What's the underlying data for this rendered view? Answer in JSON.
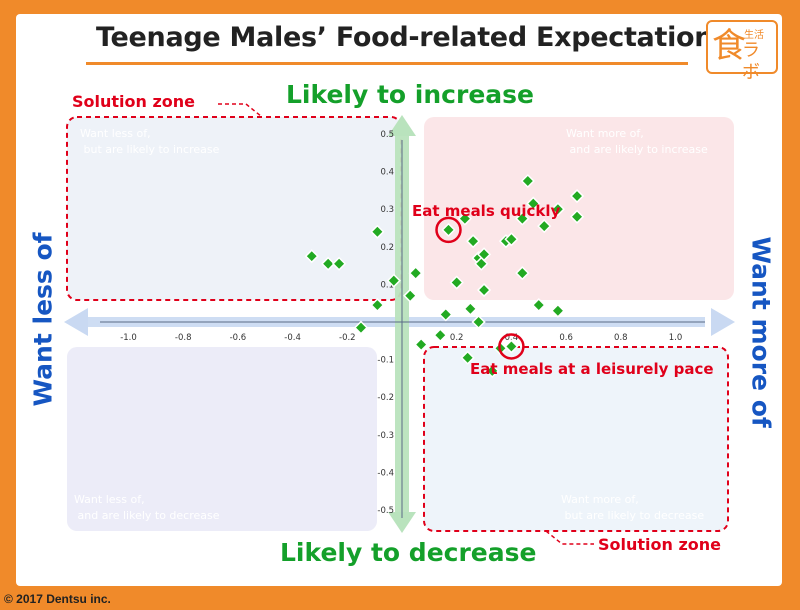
{
  "header": {
    "title": "Teenage Males’ Food-related Expectations",
    "logo_main": "食",
    "logo_top": "生活",
    "logo_side": "ラボ"
  },
  "footer": {
    "copyright": "© 2017 Dentsu inc."
  },
  "axes_words": {
    "top": "Likely to increase",
    "bottom": "Likely to decrease",
    "left": "Want less of",
    "right": "Want more of"
  },
  "zones": {
    "top_left": "Solution zone",
    "bottom_right": "Solution zone"
  },
  "quadrants": {
    "top_left": "Want less of,\n but are likely to increase",
    "top_right": "Want more of,\n and are likely to increase",
    "bottom_left": "Want less of,\n and are likely to decrease",
    "bottom_right": "Want more of,\n but are likely to decrease"
  },
  "annotations": {
    "quickly": "Eat meals quickly",
    "leisurely": "Eat meals at a leisurely pace"
  },
  "colors": {
    "marker": "#22aa22",
    "zone_dash": "#e0001a",
    "q_top_left": "#eef2f8",
    "q_top_right": "#fbe6e8",
    "q_bottom_left": "#ececf8",
    "q_bottom_right": "#eef4fa"
  },
  "chart_data": {
    "type": "scatter",
    "xlim": [
      -1.0,
      1.0
    ],
    "ylim": [
      -0.5,
      0.5
    ],
    "x_ticks": [
      "-1.0",
      "-0.8",
      "-0.6",
      "-0.4",
      "-0.2",
      "0.2",
      "0.4",
      "0.6",
      "0.8",
      "1.0"
    ],
    "x_tick_values": [
      -1.0,
      -0.8,
      -0.6,
      -0.4,
      -0.2,
      0.2,
      0.4,
      0.6,
      0.8,
      1.0
    ],
    "y_ticks": [
      "0.5",
      "0.4",
      "0.3",
      "0.2",
      "0.1",
      "-0.1",
      "-0.2",
      "-0.3",
      "-0.4",
      "-0.5"
    ],
    "y_tick_values": [
      0.5,
      0.4,
      0.3,
      0.2,
      0.1,
      -0.1,
      -0.2,
      -0.3,
      -0.4,
      -0.5
    ],
    "points": [
      {
        "x": -0.33,
        "y": 0.175
      },
      {
        "x": -0.27,
        "y": 0.155
      },
      {
        "x": -0.23,
        "y": 0.155
      },
      {
        "x": -0.09,
        "y": 0.24
      },
      {
        "x": -0.15,
        "y": -0.015
      },
      {
        "x": -0.09,
        "y": 0.045
      },
      {
        "x": -0.03,
        "y": 0.11
      },
      {
        "x": 0.03,
        "y": 0.07
      },
      {
        "x": 0.05,
        "y": 0.13
      },
      {
        "x": 0.07,
        "y": -0.06
      },
      {
        "x": 0.14,
        "y": -0.035
      },
      {
        "x": 0.16,
        "y": 0.02
      },
      {
        "x": 0.17,
        "y": 0.245
      },
      {
        "x": 0.2,
        "y": 0.105
      },
      {
        "x": 0.23,
        "y": 0.275
      },
      {
        "x": 0.24,
        "y": -0.095
      },
      {
        "x": 0.25,
        "y": 0.035
      },
      {
        "x": 0.26,
        "y": 0.215
      },
      {
        "x": 0.28,
        "y": 0.17
      },
      {
        "x": 0.29,
        "y": 0.155
      },
      {
        "x": 0.3,
        "y": 0.18
      },
      {
        "x": 0.3,
        "y": 0.085
      },
      {
        "x": 0.28,
        "y": 0.0
      },
      {
        "x": 0.33,
        "y": -0.13
      },
      {
        "x": 0.36,
        "y": -0.07
      },
      {
        "x": 0.38,
        "y": 0.215
      },
      {
        "x": 0.4,
        "y": 0.22
      },
      {
        "x": 0.4,
        "y": -0.065
      },
      {
        "x": 0.44,
        "y": 0.275
      },
      {
        "x": 0.44,
        "y": 0.13
      },
      {
        "x": 0.46,
        "y": 0.375
      },
      {
        "x": 0.48,
        "y": 0.315
      },
      {
        "x": 0.5,
        "y": 0.045
      },
      {
        "x": 0.52,
        "y": 0.255
      },
      {
        "x": 0.57,
        "y": 0.3
      },
      {
        "x": 0.57,
        "y": 0.03
      },
      {
        "x": 0.64,
        "y": 0.335
      },
      {
        "x": 0.64,
        "y": 0.28
      }
    ],
    "highlighted": [
      {
        "x": 0.17,
        "y": 0.245,
        "label": "Eat meals quickly"
      },
      {
        "x": 0.4,
        "y": -0.065,
        "label": "Eat meals at a leisurely pace"
      }
    ]
  }
}
